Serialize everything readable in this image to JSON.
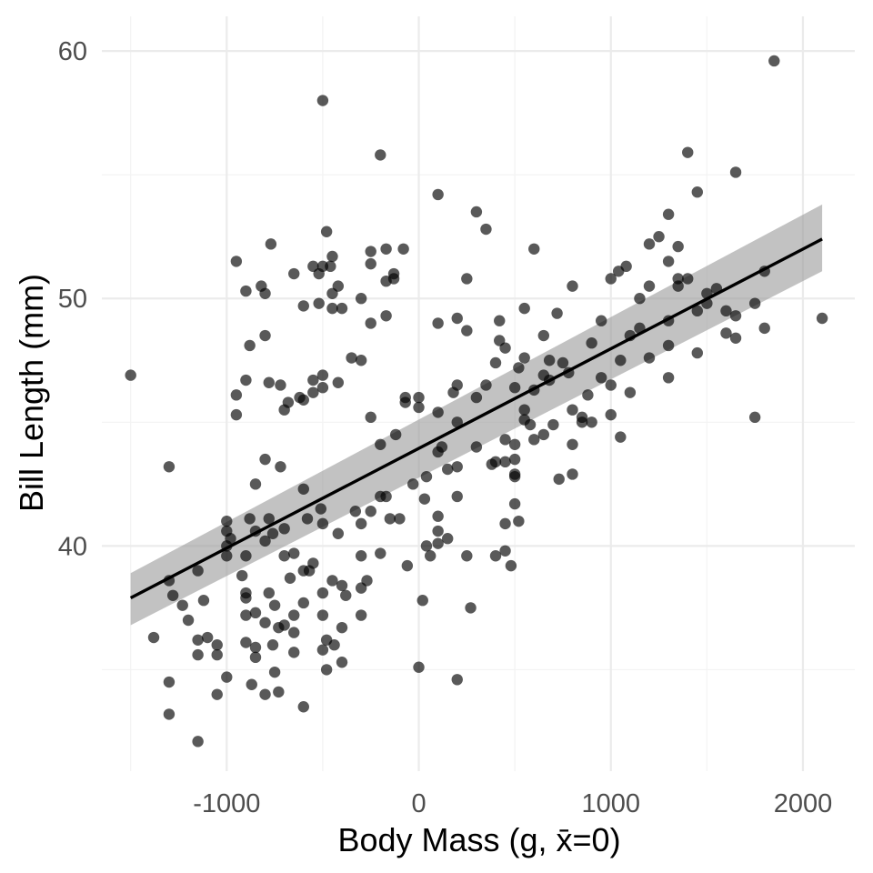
{
  "chart_data": {
    "type": "scatter",
    "title": "",
    "xlabel": "Body Mass (g, x̄=0)",
    "ylabel": "Bill Length (mm)",
    "xlim": [
      -1650,
      2270
    ],
    "ylim": [
      30.9,
      61.4
    ],
    "x_major_ticks": [
      -1000,
      0,
      1000,
      2000
    ],
    "x_tick_labels": [
      "-1000",
      "0",
      "1000",
      "2000"
    ],
    "x_minor_ticks": [
      -1500,
      -500,
      500,
      1500
    ],
    "y_major_ticks": [
      40,
      50,
      60
    ],
    "y_tick_labels": [
      "40",
      "50",
      "60"
    ],
    "y_minor_ticks": [
      35,
      45,
      55
    ],
    "grid": true,
    "legend": "none",
    "point_color": "#000000",
    "point_opacity": 0.65,
    "fit": {
      "method": "linear regression",
      "x": [
        -1500,
        2100
      ],
      "y": [
        37.9,
        52.4
      ],
      "ci_lower": [
        36.8,
        51.1
      ],
      "ci_upper": [
        38.9,
        53.8
      ],
      "line_color": "#000000",
      "band_color": "#999999"
    },
    "points": [
      [
        -1500,
        46.9
      ],
      [
        -1380,
        36.3
      ],
      [
        -1300,
        43.2
      ],
      [
        -1300,
        38.6
      ],
      [
        -1300,
        34.5
      ],
      [
        -1300,
        33.2
      ],
      [
        -1280,
        38.0
      ],
      [
        -1230,
        37.6
      ],
      [
        -1200,
        37.0
      ],
      [
        -1150,
        39.0
      ],
      [
        -1150,
        36.2
      ],
      [
        -1150,
        35.6
      ],
      [
        -1150,
        32.1
      ],
      [
        -1120,
        37.8
      ],
      [
        -1100,
        36.3
      ],
      [
        -1050,
        36.0
      ],
      [
        -1050,
        35.6
      ],
      [
        -1050,
        34.0
      ],
      [
        -1000,
        41.0
      ],
      [
        -1000,
        40.6
      ],
      [
        -1000,
        40.0
      ],
      [
        -1000,
        34.7
      ],
      [
        -1000,
        39.6
      ],
      [
        -980,
        40.3
      ],
      [
        -950,
        51.5
      ],
      [
        -950,
        46.1
      ],
      [
        -950,
        45.3
      ],
      [
        -920,
        38.8
      ],
      [
        -900,
        50.3
      ],
      [
        -900,
        46.7
      ],
      [
        -900,
        39.6
      ],
      [
        -900,
        38.1
      ],
      [
        -900,
        37.9
      ],
      [
        -900,
        37.2
      ],
      [
        -900,
        36.1
      ],
      [
        -880,
        48.1
      ],
      [
        -880,
        41.1
      ],
      [
        -870,
        34.4
      ],
      [
        -850,
        42.5
      ],
      [
        -850,
        40.6
      ],
      [
        -850,
        37.3
      ],
      [
        -850,
        35.5
      ],
      [
        -850,
        35.9
      ],
      [
        -820,
        50.5
      ],
      [
        -800,
        50.2
      ],
      [
        -800,
        48.5
      ],
      [
        -800,
        43.5
      ],
      [
        -800,
        40.2
      ],
      [
        -800,
        36.9
      ],
      [
        -800,
        34.0
      ],
      [
        -780,
        46.6
      ],
      [
        -780,
        41.1
      ],
      [
        -780,
        38.1
      ],
      [
        -770,
        52.2
      ],
      [
        -760,
        40.5
      ],
      [
        -760,
        36.0
      ],
      [
        -750,
        37.6
      ],
      [
        -750,
        34.9
      ],
      [
        -730,
        36.7
      ],
      [
        -730,
        34.1
      ],
      [
        -720,
        46.5
      ],
      [
        -720,
        43.2
      ],
      [
        -700,
        45.5
      ],
      [
        -700,
        40.7
      ],
      [
        -700,
        39.6
      ],
      [
        -700,
        36.8
      ],
      [
        -680,
        45.8
      ],
      [
        -670,
        38.7
      ],
      [
        -650,
        51.0
      ],
      [
        -650,
        39.7
      ],
      [
        -650,
        37.2
      ],
      [
        -650,
        35.7
      ],
      [
        -650,
        36.5
      ],
      [
        -620,
        46.0
      ],
      [
        -600,
        49.7
      ],
      [
        -600,
        45.9
      ],
      [
        -600,
        42.3
      ],
      [
        -600,
        39.0
      ],
      [
        -600,
        37.7
      ],
      [
        -600,
        33.5
      ],
      [
        -580,
        41.1
      ],
      [
        -570,
        39.0
      ],
      [
        -550,
        51.3
      ],
      [
        -550,
        46.7
      ],
      [
        -550,
        46.2
      ],
      [
        -550,
        39.3
      ],
      [
        -520,
        51.0
      ],
      [
        -520,
        49.8
      ],
      [
        -510,
        41.5
      ],
      [
        -500,
        58.0
      ],
      [
        -500,
        51.3
      ],
      [
        -500,
        46.9
      ],
      [
        -500,
        46.4
      ],
      [
        -500,
        40.9
      ],
      [
        -500,
        38.1
      ],
      [
        -500,
        37.2
      ],
      [
        -500,
        35.8
      ],
      [
        -480,
        52.7
      ],
      [
        -480,
        36.2
      ],
      [
        -480,
        35.0
      ],
      [
        -460,
        51.3
      ],
      [
        -450,
        51.7
      ],
      [
        -450,
        50.2
      ],
      [
        -450,
        49.6
      ],
      [
        -450,
        38.6
      ],
      [
        -440,
        36.0
      ],
      [
        -420,
        50.5
      ],
      [
        -420,
        46.6
      ],
      [
        -420,
        40.5
      ],
      [
        -400,
        49.6
      ],
      [
        -400,
        38.4
      ],
      [
        -400,
        36.7
      ],
      [
        -400,
        35.3
      ],
      [
        -380,
        38.0
      ],
      [
        -350,
        47.6
      ],
      [
        -330,
        41.4
      ],
      [
        -300,
        50.0
      ],
      [
        -300,
        47.5
      ],
      [
        -300,
        40.9
      ],
      [
        -300,
        39.6
      ],
      [
        -300,
        38.3
      ],
      [
        -300,
        37.2
      ],
      [
        -270,
        38.6
      ],
      [
        -250,
        51.9
      ],
      [
        -250,
        51.4
      ],
      [
        -250,
        49.0
      ],
      [
        -250,
        45.2
      ],
      [
        -250,
        41.4
      ],
      [
        -200,
        55.8
      ],
      [
        -200,
        44.1
      ],
      [
        -200,
        42.0
      ],
      [
        -200,
        39.7
      ],
      [
        -170,
        52.0
      ],
      [
        -170,
        50.7
      ],
      [
        -170,
        49.3
      ],
      [
        -170,
        42.0
      ],
      [
        -150,
        41.1
      ],
      [
        -130,
        51.0
      ],
      [
        -130,
        50.8
      ],
      [
        -120,
        44.5
      ],
      [
        -100,
        41.1
      ],
      [
        -80,
        52.0
      ],
      [
        -70,
        46.0
      ],
      [
        -70,
        45.8
      ],
      [
        -60,
        39.2
      ],
      [
        -30,
        42.5
      ],
      [
        0,
        46.0
      ],
      [
        0,
        45.6
      ],
      [
        0,
        35.1
      ],
      [
        20,
        37.8
      ],
      [
        30,
        41.9
      ],
      [
        40,
        42.8
      ],
      [
        40,
        40.0
      ],
      [
        60,
        39.6
      ],
      [
        100,
        54.2
      ],
      [
        100,
        49.0
      ],
      [
        100,
        45.4
      ],
      [
        100,
        43.8
      ],
      [
        100,
        41.2
      ],
      [
        100,
        40.6
      ],
      [
        100,
        40.1
      ],
      [
        120,
        44.0
      ],
      [
        150,
        43.1
      ],
      [
        150,
        40.3
      ],
      [
        180,
        46.2
      ],
      [
        200,
        49.2
      ],
      [
        200,
        46.5
      ],
      [
        200,
        45.0
      ],
      [
        200,
        43.2
      ],
      [
        200,
        42.0
      ],
      [
        200,
        34.6
      ],
      [
        250,
        50.8
      ],
      [
        250,
        48.7
      ],
      [
        250,
        39.6
      ],
      [
        270,
        37.5
      ],
      [
        300,
        53.5
      ],
      [
        300,
        46.0
      ],
      [
        300,
        44.0
      ],
      [
        350,
        52.8
      ],
      [
        350,
        46.5
      ],
      [
        380,
        43.3
      ],
      [
        400,
        47.4
      ],
      [
        400,
        43.4
      ],
      [
        400,
        39.6
      ],
      [
        420,
        49.1
      ],
      [
        420,
        48.3
      ],
      [
        450,
        48.0
      ],
      [
        450,
        44.3
      ],
      [
        450,
        43.4
      ],
      [
        450,
        40.9
      ],
      [
        450,
        39.8
      ],
      [
        480,
        39.2
      ],
      [
        500,
        46.4
      ],
      [
        500,
        44.1
      ],
      [
        500,
        43.5
      ],
      [
        500,
        42.9
      ],
      [
        500,
        42.8
      ],
      [
        500,
        41.7
      ],
      [
        520,
        47.2
      ],
      [
        520,
        41.0
      ],
      [
        550,
        49.6
      ],
      [
        550,
        47.6
      ],
      [
        550,
        45.5
      ],
      [
        550,
        45.1
      ],
      [
        580,
        44.9
      ],
      [
        600,
        52.0
      ],
      [
        600,
        46.3
      ],
      [
        600,
        44.3
      ],
      [
        650,
        48.5
      ],
      [
        650,
        46.9
      ],
      [
        650,
        44.5
      ],
      [
        680,
        47.5
      ],
      [
        680,
        46.7
      ],
      [
        700,
        44.9
      ],
      [
        720,
        49.4
      ],
      [
        730,
        42.7
      ],
      [
        750,
        47.4
      ],
      [
        780,
        47.0
      ],
      [
        800,
        50.5
      ],
      [
        800,
        45.5
      ],
      [
        800,
        44.1
      ],
      [
        800,
        42.9
      ],
      [
        850,
        45.2
      ],
      [
        850,
        45.0
      ],
      [
        880,
        46.1
      ],
      [
        900,
        48.2
      ],
      [
        900,
        45.0
      ],
      [
        950,
        49.1
      ],
      [
        950,
        46.8
      ],
      [
        1000,
        50.8
      ],
      [
        1000,
        46.5
      ],
      [
        1000,
        45.3
      ],
      [
        1040,
        51.1
      ],
      [
        1050,
        47.5
      ],
      [
        1050,
        44.4
      ],
      [
        1080,
        51.3
      ],
      [
        1100,
        48.5
      ],
      [
        1100,
        46.2
      ],
      [
        1150,
        50.0
      ],
      [
        1150,
        48.8
      ],
      [
        1200,
        52.2
      ],
      [
        1200,
        50.5
      ],
      [
        1200,
        47.6
      ],
      [
        1250,
        52.5
      ],
      [
        1300,
        53.4
      ],
      [
        1300,
        51.5
      ],
      [
        1300,
        49.1
      ],
      [
        1300,
        48.1
      ],
      [
        1300,
        46.8
      ],
      [
        1350,
        52.1
      ],
      [
        1350,
        50.8
      ],
      [
        1350,
        50.5
      ],
      [
        1400,
        55.9
      ],
      [
        1400,
        50.8
      ],
      [
        1450,
        54.3
      ],
      [
        1450,
        49.5
      ],
      [
        1450,
        47.8
      ],
      [
        1500,
        50.2
      ],
      [
        1500,
        49.8
      ],
      [
        1550,
        50.4
      ],
      [
        1600,
        49.5
      ],
      [
        1600,
        48.6
      ],
      [
        1650,
        55.1
      ],
      [
        1650,
        49.3
      ],
      [
        1650,
        48.4
      ],
      [
        1750,
        49.8
      ],
      [
        1750,
        45.2
      ],
      [
        1800,
        51.1
      ],
      [
        1800,
        48.8
      ],
      [
        1850,
        59.6
      ],
      [
        2100,
        49.2
      ]
    ]
  }
}
